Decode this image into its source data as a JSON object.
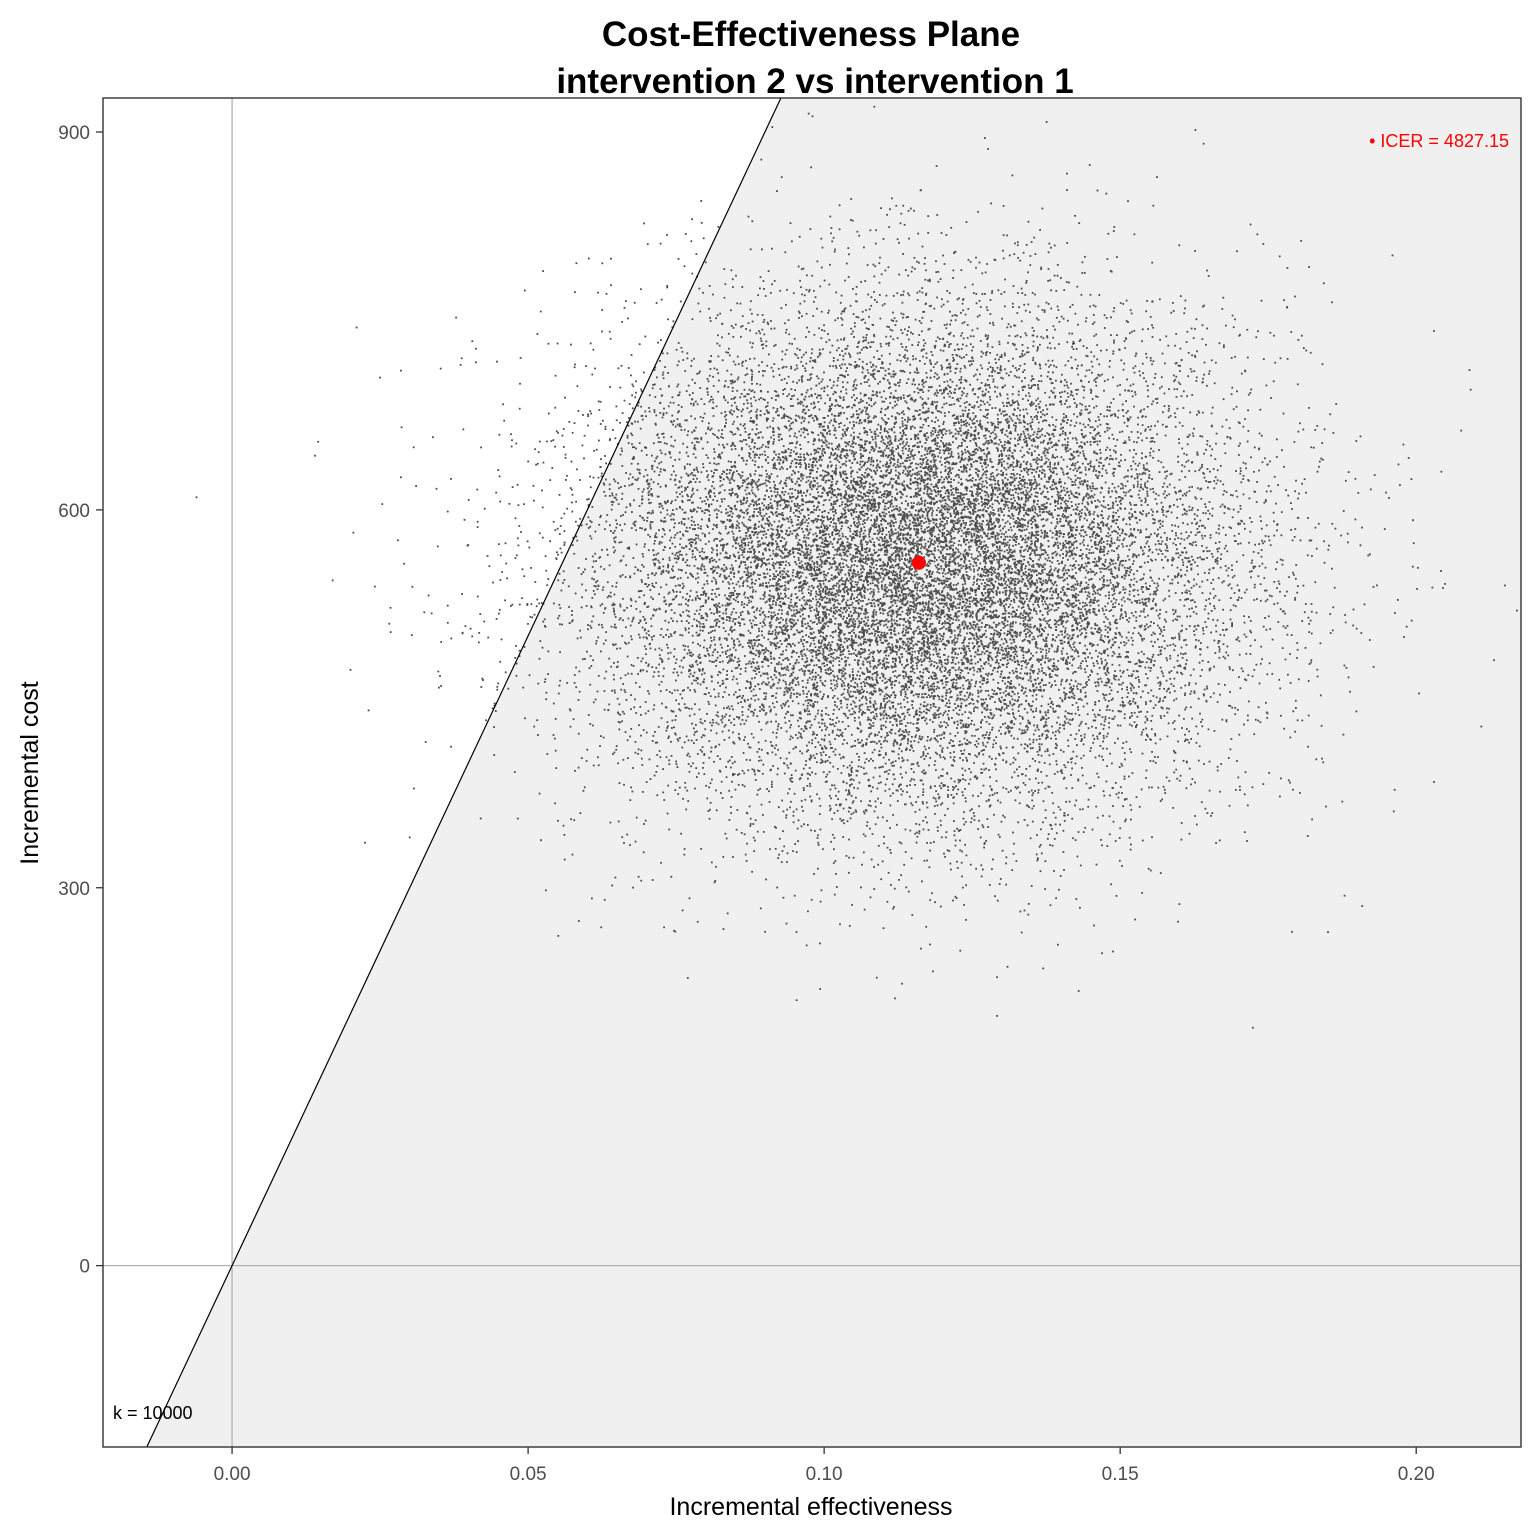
{
  "chart_data": {
    "type": "scatter",
    "title": "Cost-Effectiveness Plane",
    "subtitle": "intervention 2 vs intervention 1",
    "xlabel": "Incremental effectiveness",
    "ylabel": "Incremental cost",
    "xlim": [
      -0.0218,
      0.2177
    ],
    "ylim": [
      -144,
      927
    ],
    "x_ticks": [
      {
        "value": 0.0,
        "label": "0.00"
      },
      {
        "value": 0.05,
        "label": "0.05"
      },
      {
        "value": 0.1,
        "label": "0.10"
      },
      {
        "value": 0.15,
        "label": "0.15"
      },
      {
        "value": 0.2,
        "label": "0.20"
      }
    ],
    "y_ticks": [
      {
        "value": 0,
        "label": "0"
      },
      {
        "value": 300,
        "label": "300"
      },
      {
        "value": 600,
        "label": "600"
      },
      {
        "value": 900,
        "label": "900"
      }
    ],
    "grid": false,
    "willingness_to_pay": {
      "k": 10000,
      "label": "k = 10000"
    },
    "icer": {
      "x": 0.116,
      "y": 558,
      "value": 4827.15,
      "label": "• ICER = 4827.15",
      "color": "#ff0000"
    },
    "series": [
      {
        "marker": "point",
        "color": "#4d4d4d",
        "distribution": {
          "x_mean": 0.116,
          "x_sd": 0.027,
          "y_mean": 558,
          "y_sd": 98,
          "n": 20000,
          "seed": 7
        },
        "points": [
          {
            "x": -0.006,
            "y": 610
          },
          {
            "x": 0.014,
            "y": 643
          },
          {
            "x": 0.017,
            "y": 544
          },
          {
            "x": 0.02,
            "y": 473
          },
          {
            "x": 0.025,
            "y": 705
          },
          {
            "x": 0.03,
            "y": 340
          },
          {
            "x": 0.037,
            "y": 412
          },
          {
            "x": 0.042,
            "y": 355
          },
          {
            "x": 0.053,
            "y": 298
          },
          {
            "x": 0.123,
            "y": 250
          },
          {
            "x": 0.137,
            "y": 236
          },
          {
            "x": 0.143,
            "y": 218
          },
          {
            "x": 0.16,
            "y": 287
          },
          {
            "x": 0.179,
            "y": 265
          },
          {
            "x": 0.174,
            "y": 928
          },
          {
            "x": 0.119,
            "y": 873
          },
          {
            "x": 0.141,
            "y": 867
          },
          {
            "x": 0.196,
            "y": 802
          },
          {
            "x": 0.203,
            "y": 742
          },
          {
            "x": 0.209,
            "y": 711
          },
          {
            "x": 0.215,
            "y": 540
          },
          {
            "x": 0.211,
            "y": 428
          },
          {
            "x": 0.203,
            "y": 384
          },
          {
            "x": 0.217,
            "y": 520
          }
        ]
      }
    ]
  },
  "colors": {
    "panel_shaded": "#f0f0f0",
    "axis_line": "#333333",
    "zero_line": "#b3b3b3",
    "points": "#4d4d4d",
    "icer": "#ff0000"
  }
}
